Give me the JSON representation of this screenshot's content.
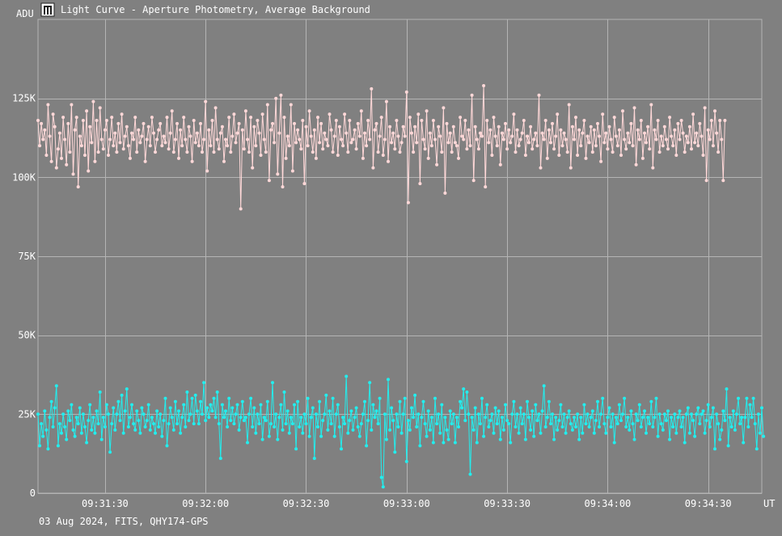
{
  "window": {
    "title": "Light Curve - Aperture Photometry, Average Background",
    "app_icon": "light-curve-app-icon"
  },
  "footer": {
    "info": "03 Aug 2024, FITS, QHY174-GPS"
  },
  "colors": {
    "background": "#808080",
    "grid": "#b4b4b4",
    "series_1": "#ffd8d8",
    "series_2": "#22eeee"
  },
  "chart_data": {
    "type": "line",
    "title": "Light Curve - Aperture Photometry, Average Background",
    "xlabel": "UT",
    "ylabel": "ADU",
    "x_range": [
      "09:31:10",
      "09:34:46"
    ],
    "ylim": [
      0,
      150000
    ],
    "x_ticks": [
      "09:31:30",
      "09:32:00",
      "09:32:30",
      "09:33:00",
      "09:33:30",
      "09:34:00",
      "09:34:30"
    ],
    "y_ticks": [
      {
        "value": 0,
        "label": "0"
      },
      {
        "value": 25000,
        "label": "25K"
      },
      {
        "value": 50000,
        "label": "50K"
      },
      {
        "value": 75000,
        "label": "75K"
      },
      {
        "value": 100000,
        "label": "100K"
      },
      {
        "value": 125000,
        "label": "125K"
      }
    ],
    "grid": true,
    "legend": "none",
    "sample_interval_seconds": 0.5,
    "series": [
      {
        "color": "#ffd8d8",
        "marker": "circle",
        "values": [
          118000,
          110000,
          117000,
          112000,
          115000,
          107000,
          123000,
          113000,
          105000,
          120000,
          116000,
          103000,
          109000,
          114000,
          106000,
          119000,
          112000,
          104000,
          117000,
          108000,
          123000,
          101000,
          115000,
          119000,
          97000,
          113000,
          110000,
          118000,
          107000,
          121000,
          102000,
          116000,
          111000,
          124000,
          105000,
          118000,
          108000,
          122000,
          112000,
          109000,
          115000,
          118000,
          107000,
          112000,
          119000,
          110000,
          114000,
          108000,
          117000,
          111000,
          120000,
          109000,
          113000,
          116000,
          110000,
          106000,
          114000,
          112000,
          119000,
          108000,
          115000,
          111000,
          113000,
          117000,
          105000,
          112000,
          116000,
          110000,
          119000,
          114000,
          108000,
          112000,
          115000,
          117000,
          110000,
          113000,
          111000,
          119000,
          109000,
          114000,
          121000,
          108000,
          112000,
          117000,
          106000,
          115000,
          110000,
          119000,
          112000,
          108000,
          116000,
          113000,
          105000,
          118000,
          111000,
          114000,
          110000,
          117000,
          108000,
          112000,
          124000,
          102000,
          115000,
          110000,
          118000,
          108000,
          122000,
          112000,
          109000,
          114000,
          116000,
          105000,
          112000,
          110000,
          119000,
          108000,
          113000,
          120000,
          111000,
          114000,
          117000,
          90000,
          115000,
          109000,
          121000,
          112000,
          108000,
          119000,
          103000,
          116000,
          110000,
          118000,
          114000,
          107000,
          120000,
          112000,
          108000,
          123000,
          99000,
          115000,
          117000,
          111000,
          125000,
          101000,
          114000,
          126000,
          97000,
          119000,
          106000,
          113000,
          110000,
          123000,
          102000,
          117000,
          111000,
          115000,
          112000,
          109000,
          118000,
          98000,
          116000,
          110000,
          121000,
          113000,
          108000,
          115000,
          106000,
          119000,
          111000,
          117000,
          109000,
          114000,
          112000,
          110000,
          120000,
          115000,
          108000,
          113000,
          118000,
          107000,
          116000,
          112000,
          110000,
          120000,
          114000,
          108000,
          118000,
          111000,
          112000,
          115000,
          109000,
          117000,
          113000,
          121000,
          106000,
          114000,
          110000,
          118000,
          112000,
          128000,
          103000,
          115000,
          117000,
          108000,
          113000,
          119000,
          107000,
          112000,
          124000,
          105000,
          116000,
          111000,
          114000,
          109000,
          118000,
          113000,
          108000,
          111000,
          116000,
          113000,
          127000,
          92000,
          119000,
          114000,
          108000,
          116000,
          111000,
          120000,
          98000,
          118000,
          112000,
          109000,
          121000,
          106000,
          114000,
          110000,
          118000,
          112000,
          104000,
          116000,
          113000,
          108000,
          122000,
          95000,
          117000,
          111000,
          114000,
          108000,
          116000,
          111000,
          110000,
          106000,
          119000,
          113000,
          112000,
          118000,
          109000,
          115000,
          110000,
          126000,
          99000,
          116000,
          112000,
          109000,
          114000,
          113000,
          129000,
          97000,
          118000,
          111000,
          115000,
          107000,
          119000,
          113000,
          110000,
          116000,
          104000,
          114000,
          112000,
          117000,
          109000,
          115000,
          111000,
          113000,
          120000,
          108000,
          115000,
          110000,
          112000,
          114000,
          118000,
          107000,
          113000,
          111000,
          116000,
          109000,
          112000,
          114000,
          110000,
          126000,
          103000,
          114000,
          112000,
          118000,
          106000,
          115000,
          111000,
          117000,
          109000,
          113000,
          120000,
          107000,
          115000,
          110000,
          114000,
          112000,
          108000,
          123000,
          103000,
          116000,
          112000,
          119000,
          107000,
          115000,
          110000,
          114000,
          118000,
          106000,
          113000,
          111000,
          116000,
          108000,
          115000,
          110000,
          117000,
          113000,
          105000,
          120000,
          111000,
          114000,
          109000,
          116000,
          112000,
          108000,
          119000,
          113000,
          110000,
          115000,
          107000,
          121000,
          112000,
          109000,
          114000,
          111000,
          117000,
          110000,
          122000,
          104000,
          115000,
          112000,
          118000,
          106000,
          114000,
          111000,
          116000,
          109000,
          123000,
          103000,
          115000,
          112000,
          118000,
          108000,
          113000,
          110000,
          116000,
          112000,
          109000,
          119000,
          113000,
          110000,
          115000,
          107000,
          117000,
          112000,
          118000,
          114000,
          108000,
          113000,
          111000,
          116000,
          109000,
          120000,
          111000,
          114000,
          110000,
          117000,
          113000,
          107000,
          122000,
          99000,
          115000,
          112000,
          118000,
          110000,
          121000,
          114000,
          108000,
          118000,
          112000,
          99000,
          118000
        ]
      },
      {
        "color": "#22eeee",
        "marker": "circle",
        "values": [
          25000,
          15000,
          22000,
          18000,
          26000,
          20000,
          14000,
          24000,
          29000,
          21000,
          27000,
          34000,
          15000,
          22000,
          19000,
          25000,
          21000,
          17000,
          26000,
          23000,
          28000,
          20000,
          18000,
          24000,
          22000,
          27000,
          19000,
          25000,
          21000,
          16000,
          23000,
          28000,
          20000,
          24000,
          19000,
          26000,
          22000,
          32000,
          17000,
          24000,
          21000,
          28000,
          25000,
          13000,
          22000,
          27000,
          20000,
          25000,
          29000,
          23000,
          31000,
          19000,
          26000,
          33000,
          21000,
          24000,
          28000,
          22000,
          20000,
          26000,
          23000,
          19000,
          27000,
          25000,
          21000,
          23000,
          28000,
          20000,
          24000,
          22000,
          19000,
          26000,
          21000,
          25000,
          18000,
          23000,
          30000,
          15000,
          22000,
          27000,
          24000,
          20000,
          29000,
          22000,
          26000,
          19000,
          24000,
          28000,
          21000,
          32000,
          23000,
          25000,
          30000,
          22000,
          31000,
          26000,
          22000,
          29000,
          25000,
          35000,
          23000,
          27000,
          24000,
          28000,
          26000,
          30000,
          24000,
          32000,
          22000,
          11000,
          28000,
          24000,
          26000,
          21000,
          30000,
          23000,
          27000,
          22000,
          25000,
          28000,
          20000,
          24000,
          29000,
          23000,
          24000,
          16000,
          25000,
          30000,
          21000,
          27000,
          19000,
          25000,
          22000,
          28000,
          17000,
          24000,
          23000,
          29000,
          18000,
          22000,
          35000,
          21000,
          25000,
          17000,
          24000,
          28000,
          20000,
          32000,
          22000,
          26000,
          19000,
          24000,
          22000,
          28000,
          14000,
          29000,
          21000,
          24000,
          19000,
          25000,
          22000,
          30000,
          18000,
          24000,
          27000,
          11000,
          25000,
          21000,
          29000,
          18000,
          23000,
          25000,
          31000,
          20000,
          26000,
          22000,
          30000,
          18000,
          25000,
          28000,
          21000,
          14000,
          24000,
          22000,
          37000,
          19000,
          23000,
          26000,
          20000,
          24000,
          27000,
          21000,
          18000,
          22000,
          25000,
          29000,
          15000,
          23000,
          35000,
          20000,
          28000,
          24000,
          26000,
          22000,
          30000,
          5000,
          2000,
          25000,
          17000,
          36000,
          20000,
          27000,
          23000,
          13000,
          25000,
          21000,
          29000,
          19000,
          25000,
          30000,
          10000,
          23000,
          20000,
          27000,
          24000,
          31000,
          21000,
          25000,
          15000,
          24000,
          29000,
          22000,
          18000,
          26000,
          20000,
          24000,
          16000,
          30000,
          22000,
          25000,
          19000,
          28000,
          16000,
          24000,
          20000,
          17000,
          26000,
          22000,
          25000,
          16000,
          24000,
          21000,
          29000,
          27000,
          33000,
          23000,
          32000,
          25000,
          6000,
          24000,
          20000,
          27000,
          16000,
          25000,
          22000,
          30000,
          18000,
          24000,
          28000,
          21000,
          23000,
          25000,
          19000,
          27000,
          22000,
          26000,
          17000,
          24000,
          20000,
          28000,
          23000,
          22000,
          16000,
          25000,
          29000,
          21000,
          25000,
          19000,
          27000,
          22000,
          25000,
          17000,
          29000,
          24000,
          20000,
          26000,
          18000,
          28000,
          23000,
          25000,
          19000,
          26000,
          34000,
          21000,
          24000,
          29000,
          22000,
          25000,
          17000,
          24000,
          20000,
          23000,
          28000,
          21000,
          25000,
          19000,
          24000,
          26000,
          22000,
          20000,
          24000,
          21000,
          25000,
          17000,
          24000,
          19000,
          28000,
          22000,
          25000,
          21000,
          24000,
          26000,
          19000,
          23000,
          29000,
          21000,
          25000,
          30000,
          22000,
          19000,
          24000,
          27000,
          21000,
          25000,
          16000,
          24000,
          22000,
          28000,
          23000,
          25000,
          30000,
          21000,
          24000,
          20000,
          26000,
          22000,
          17000,
          25000,
          23000,
          28000,
          21000,
          24000,
          26000,
          19000,
          24000,
          22000,
          29000,
          21000,
          24000,
          30000,
          18000,
          25000,
          22000,
          20000,
          25000,
          23000,
          26000,
          17000,
          24000,
          21000,
          25000,
          19000,
          24000,
          26000,
          21000,
          24000,
          16000,
          25000,
          27000,
          19000,
          25000,
          23000,
          18000,
          25000,
          27000,
          22000,
          25000,
          26000,
          19000,
          23000,
          28000,
          21000,
          24000,
          27000,
          14000,
          25000,
          22000,
          17000,
          20000,
          26000,
          23000,
          33000,
          15000,
          24000,
          21000,
          26000,
          20000,
          25000,
          30000,
          22000,
          24000,
          16000,
          24000,
          30000,
          21000,
          28000,
          24000,
          30000,
          22000,
          14000,
          25000,
          19000,
          27000,
          18000
        ]
      }
    ]
  }
}
